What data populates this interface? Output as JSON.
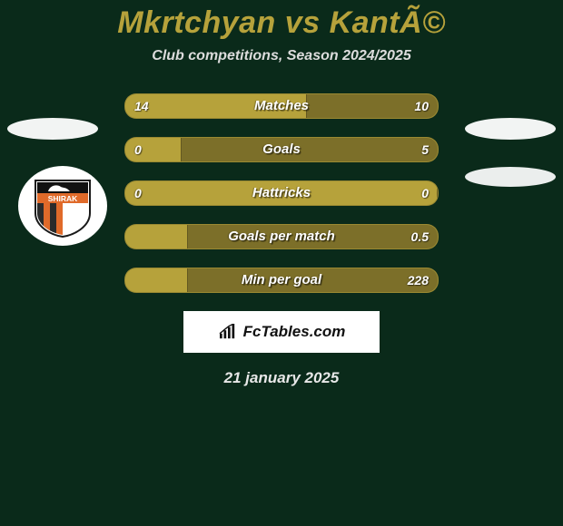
{
  "title_left": "Mkrtchyan",
  "title_vs": "vs",
  "title_right": "KantÃ©",
  "title_color": "#b6a23b",
  "subtitle": "Club competitions, Season 2024/2025",
  "background_color": "#0a2a1a",
  "bar_left_color": "#b6a23b",
  "bar_right_color": "#7c6f29",
  "bars": [
    {
      "label": "Matches",
      "left": "14",
      "right": "10",
      "right_fill_pct": 42
    },
    {
      "label": "Goals",
      "left": "0",
      "right": "5",
      "right_fill_pct": 82
    },
    {
      "label": "Hattricks",
      "left": "0",
      "right": "0",
      "right_fill_pct": 0
    },
    {
      "label": "Goals per match",
      "left": "",
      "right": "0.5",
      "right_fill_pct": 80
    },
    {
      "label": "Min per goal",
      "left": "",
      "right": "228",
      "right_fill_pct": 80
    }
  ],
  "left_club": {
    "name": "SHIRAK",
    "text_color": "#ffffff",
    "banner_color": "#e06a2a",
    "stripe_dark": "#2b2b2b",
    "stripe_light": "#e06a2a"
  },
  "brand": {
    "label": "FcTables.com"
  },
  "footer_date": "21 january 2025"
}
